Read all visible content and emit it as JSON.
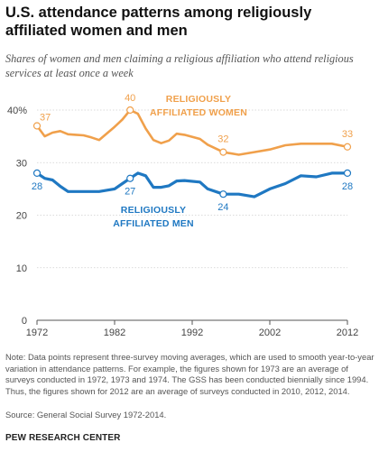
{
  "header": {
    "title": "U.S. attendance patterns among religiously affiliated women and men",
    "subtitle": "Shares of women and men claiming a religious affiliation who attend religious services at least once a week"
  },
  "chart_data": {
    "type": "line",
    "xlim": [
      1972,
      2012
    ],
    "ylim": [
      0,
      40
    ],
    "xticks": [
      "1972",
      "1982",
      "1992",
      "2002",
      "2012"
    ],
    "yticks": [
      "0",
      "10",
      "20",
      "30",
      "40%"
    ],
    "grid": true,
    "series": [
      {
        "name": "RELIGIOUSLY AFFILIATED WOMEN",
        "color": "#F0A04B",
        "x": [
          1972,
          1973,
          1974,
          1975,
          1976,
          1977,
          1978,
          1979,
          1980,
          1982,
          1983,
          1984,
          1985,
          1986,
          1987,
          1988,
          1989,
          1990,
          1991,
          1993,
          1994,
          1996,
          1998,
          2000,
          2002,
          2004,
          2006,
          2008,
          2010,
          2012
        ],
        "y": [
          37,
          35,
          35.7,
          36,
          35.4,
          35.3,
          35.2,
          34.8,
          34.3,
          36.8,
          38.2,
          40,
          39.3,
          36.5,
          34.3,
          33.7,
          34.2,
          35.5,
          35.3,
          34.5,
          33.4,
          32,
          31.5,
          32,
          32.5,
          33.3,
          33.6,
          33.6,
          33.6,
          33
        ],
        "labels": [
          {
            "x": 1972,
            "y": 37,
            "text": "37"
          },
          {
            "x": 1984,
            "y": 40,
            "text": "40"
          },
          {
            "x": 1996,
            "y": 32,
            "text": "32"
          },
          {
            "x": 2012,
            "y": 33,
            "text": "33"
          }
        ],
        "legend_label": [
          "RELIGIOUSLY",
          "AFFILIATED WOMEN"
        ]
      },
      {
        "name": "RELIGIOUSLY AFFILIATED MEN",
        "color": "#1F78C2",
        "x": [
          1972,
          1973,
          1974,
          1975,
          1976,
          1977,
          1978,
          1979,
          1980,
          1982,
          1983,
          1984,
          1985,
          1986,
          1987,
          1988,
          1989,
          1990,
          1991,
          1993,
          1994,
          1996,
          1998,
          2000,
          2002,
          2004,
          2006,
          2008,
          2010,
          2012
        ],
        "y": [
          28,
          27,
          26.7,
          25.5,
          24.5,
          24.5,
          24.5,
          24.5,
          24.5,
          25,
          26,
          27,
          28,
          27.5,
          25.3,
          25.3,
          25.6,
          26.5,
          26.6,
          26.3,
          25,
          24,
          24,
          23.5,
          25,
          26,
          27.5,
          27.3,
          28,
          28
        ],
        "labels": [
          {
            "x": 1972,
            "y": 28,
            "text": "28"
          },
          {
            "x": 1984,
            "y": 27,
            "text": "27"
          },
          {
            "x": 1996,
            "y": 24,
            "text": "24"
          },
          {
            "x": 2012,
            "y": 28,
            "text": "28"
          }
        ],
        "legend_label": [
          "RELIGIOUSLY",
          "AFFILIATED MEN"
        ]
      }
    ]
  },
  "footer": {
    "note": "Note: Data points represent three-survey moving averages, which are used to smooth year-to-year variation in attendance patterns. For example, the figures shown for 1973 are an average of surveys conducted in 1972, 1973 and 1974. The GSS has been conducted biennially since 1994. Thus, the figures shown for 2012 are an average of surveys conducted in 2010, 2012, 2014.",
    "source": "Source:  General Social Survey 1972-2014.",
    "brand": "PEW RESEARCH CENTER"
  }
}
